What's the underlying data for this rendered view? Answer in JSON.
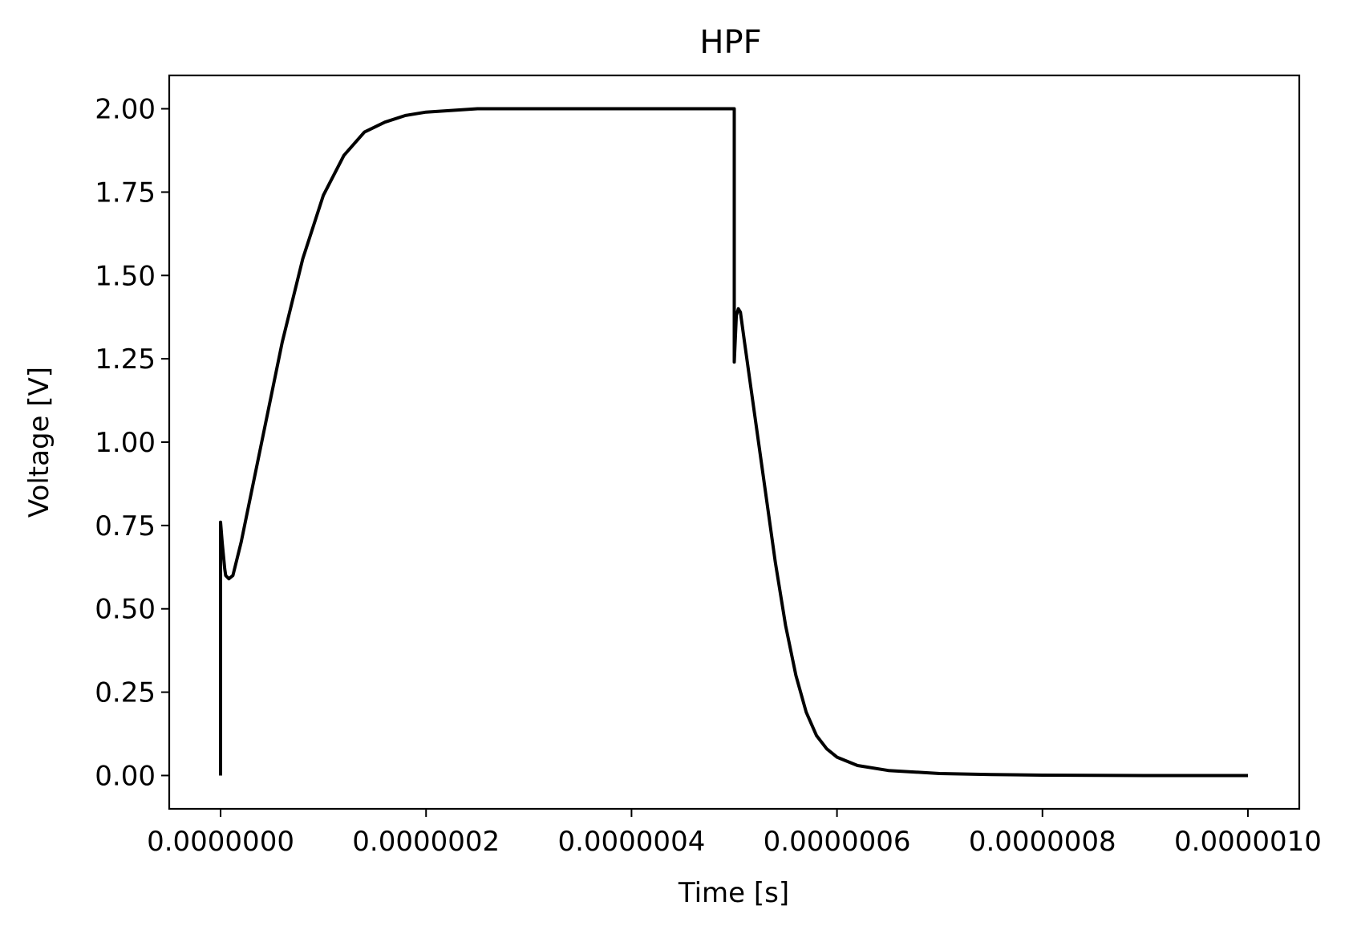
{
  "chart_data": {
    "type": "line",
    "title": "HPF",
    "xlabel": "Time [s]",
    "ylabel": "Voltage [V]",
    "xlim": [
      -5e-08,
      1.05e-06
    ],
    "ylim": [
      -0.1,
      2.1
    ],
    "grid": false,
    "x_ticks": [
      0,
      2e-07,
      4e-07,
      6e-07,
      8e-07,
      1e-06
    ],
    "x_tick_labels": [
      "0.0000000",
      "0.0000002",
      "0.0000004",
      "0.0000006",
      "0.0000008",
      "0.0000010"
    ],
    "y_ticks": [
      0,
      0.25,
      0.5,
      0.75,
      1.0,
      1.25,
      1.5,
      1.75,
      2.0
    ],
    "y_tick_labels": [
      "0.00",
      "0.25",
      "0.50",
      "0.75",
      "1.00",
      "1.25",
      "1.50",
      "1.75",
      "2.00"
    ],
    "series": [
      {
        "color": "#000000",
        "x": [
          0,
          0,
          1.5e-09,
          4e-09,
          5e-09,
          8e-09,
          1.2e-08,
          2e-08,
          4e-08,
          6e-08,
          8e-08,
          1e-07,
          1.2e-07,
          1.4e-07,
          1.6e-07,
          1.8e-07,
          2e-07,
          2.5e-07,
          3e-07,
          3.5e-07,
          4e-07,
          4.5e-07,
          5e-07,
          5e-07,
          5e-07,
          5.02e-07,
          5.04e-07,
          5.06e-07,
          5.1e-07,
          5.2e-07,
          5.3e-07,
          5.4e-07,
          5.5e-07,
          5.6e-07,
          5.7e-07,
          5.8e-07,
          5.9e-07,
          6e-07,
          6.2e-07,
          6.5e-07,
          7e-07,
          7.5e-07,
          8e-07,
          9e-07,
          1e-06
        ],
        "y": [
          0.0,
          0.76,
          0.7,
          0.62,
          0.6,
          0.59,
          0.6,
          0.7,
          1.0,
          1.3,
          1.55,
          1.74,
          1.86,
          1.93,
          1.96,
          1.98,
          1.99,
          2.0,
          2.0,
          2.0,
          2.0,
          2.0,
          2.0,
          1.99,
          1.24,
          1.38,
          1.4,
          1.39,
          1.3,
          1.08,
          0.86,
          0.64,
          0.45,
          0.3,
          0.19,
          0.12,
          0.08,
          0.055,
          0.03,
          0.015,
          0.006,
          0.003,
          0.001,
          0.0,
          0.0
        ]
      }
    ]
  }
}
